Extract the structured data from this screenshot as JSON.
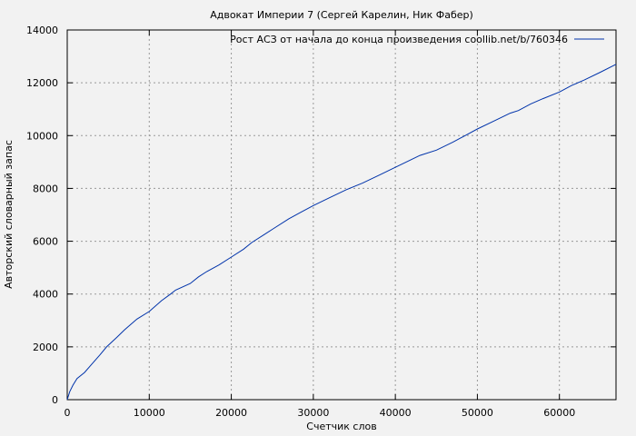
{
  "chart_data": {
    "type": "line",
    "title": "Адвокат Империи 7 (Сергей Карелин, Ник Фабер)",
    "xlabel": "Счетчик слов",
    "ylabel": "Авторский словарный запас",
    "xlim": [
      0,
      66900
    ],
    "ylim": [
      0,
      14000
    ],
    "xticks": [
      0,
      10000,
      20000,
      30000,
      40000,
      50000,
      60000
    ],
    "yticks": [
      0,
      2000,
      4000,
      6000,
      8000,
      10000,
      12000,
      14000
    ],
    "grid": true,
    "legend_position": "top-right",
    "series": [
      {
        "name": "Рост АСЗ от начала до конца произведения coollib.net/b/760346",
        "color": "#0033aa",
        "x": [
          0,
          300,
          700,
          1200,
          2100,
          3000,
          4000,
          4800,
          6000,
          7000,
          8500,
          10000,
          11500,
          12600,
          13200,
          15000,
          16000,
          17000,
          18500,
          20000,
          21500,
          22500,
          24000,
          25000,
          27000,
          28500,
          30000,
          32000,
          34000,
          36000,
          38000,
          40000,
          42000,
          43000,
          45000,
          47000,
          48500,
          50000,
          52000,
          54000,
          55000,
          56500,
          58000,
          60000,
          61500,
          63000,
          65000,
          66900
        ],
        "y": [
          0,
          300,
          550,
          800,
          1030,
          1350,
          1700,
          2000,
          2350,
          2650,
          3050,
          3340,
          3750,
          4000,
          4150,
          4400,
          4650,
          4850,
          5100,
          5400,
          5700,
          5950,
          6250,
          6450,
          6850,
          7100,
          7350,
          7650,
          7950,
          8200,
          8500,
          8800,
          9100,
          9250,
          9450,
          9750,
          10000,
          10250,
          10550,
          10850,
          10950,
          11200,
          11400,
          11650,
          11900,
          12100,
          12400,
          12700
        ]
      }
    ]
  }
}
